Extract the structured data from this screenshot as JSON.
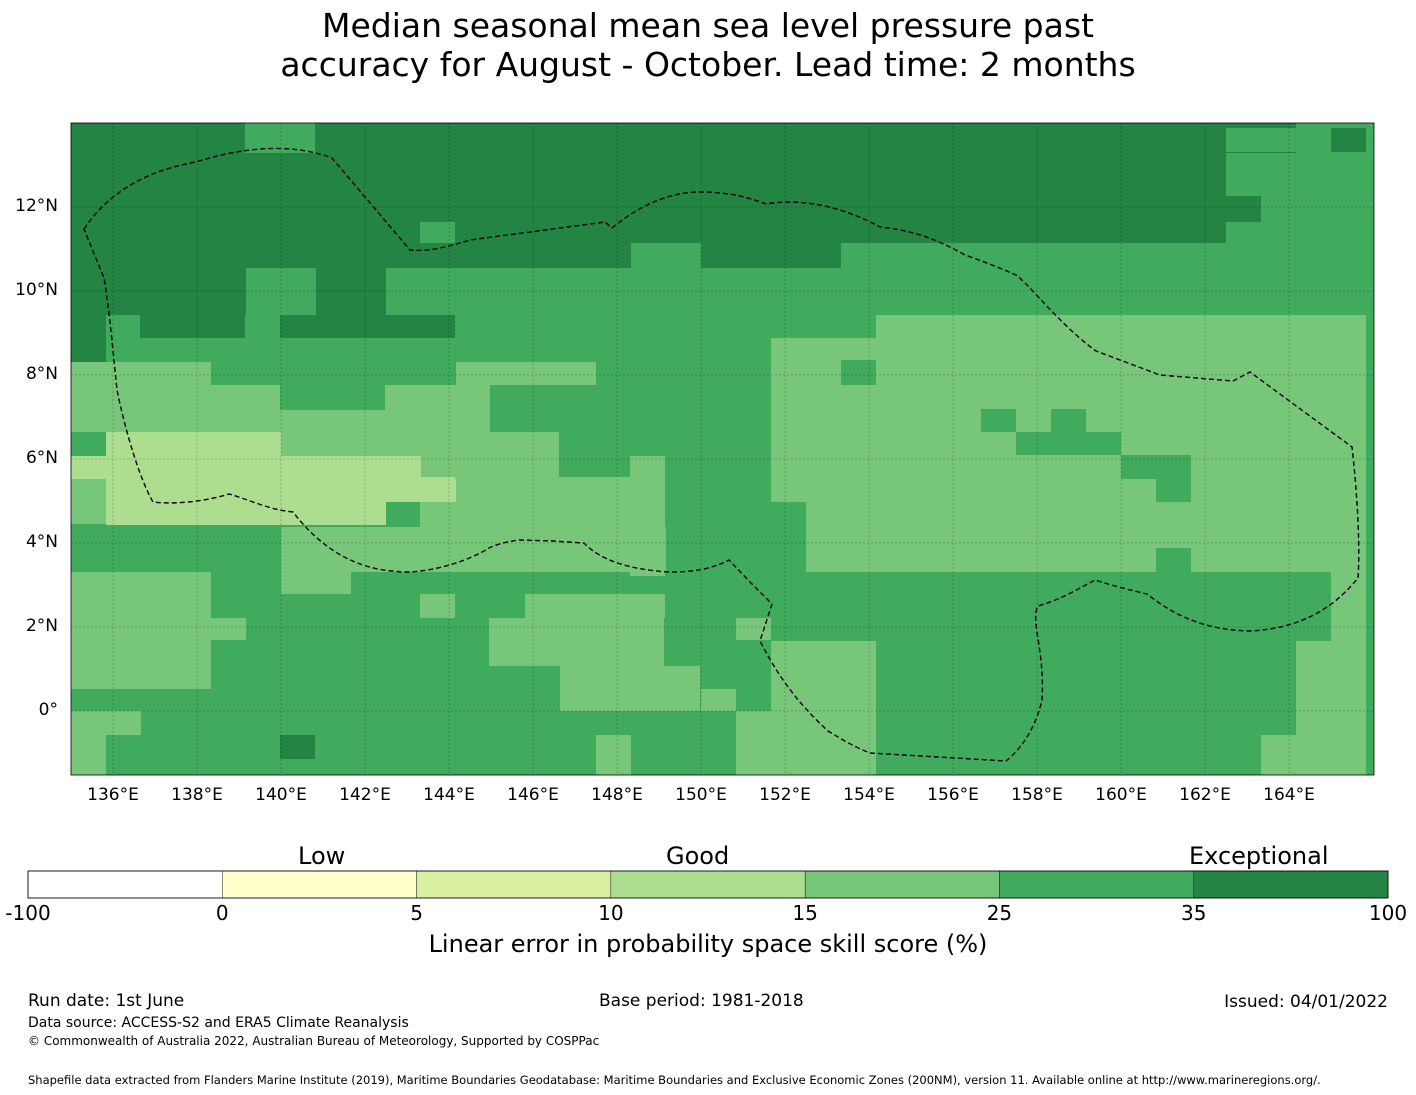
{
  "title": {
    "line1": "Median seasonal mean sea level pressure past",
    "line2": "accuracy for August - October. Lead time: 2 months"
  },
  "map": {
    "lon_ticks": [
      "136°E",
      "138°E",
      "140°E",
      "142°E",
      "144°E",
      "146°E",
      "148°E",
      "150°E",
      "152°E",
      "154°E",
      "156°E",
      "158°E",
      "160°E",
      "162°E",
      "164°E"
    ],
    "lat_ticks": [
      "12°N",
      "10°N",
      "8°N",
      "6°N",
      "4°N",
      "2°N",
      "0°"
    ],
    "colors": {
      "c25_35": "#41ab5d",
      "c35_100": "#238443",
      "c15_25": "#78c679",
      "c10_15": "#addd8e",
      "c5_10": "#d9f0a3",
      "c0_5": "#ffffcc",
      "neg": "#ffffff"
    }
  },
  "legend": {
    "categories": {
      "low": "Low",
      "good": "Good",
      "exceptional": "Exceptional"
    },
    "ticks": [
      "-100",
      "0",
      "5",
      "10",
      "15",
      "25",
      "35",
      "100"
    ],
    "colors": [
      "#ffffff",
      "#ffffcc",
      "#d9f0a3",
      "#addd8e",
      "#78c679",
      "#41ab5d",
      "#238443"
    ],
    "title": "Linear error in probability space skill score (%)"
  },
  "footer": {
    "run_date": "Run date: 1st June",
    "base_period": "Base period: 1981-2018",
    "issued": "Issued: 04/01/2022",
    "data_source": "Data source: ACCESS-S2 and ERA5 Climate Reanalysis",
    "copyright": "© Commonwealth of Australia 2022, Australian Bureau of Meteorology, Supported by COSPPac",
    "shapefile": "Shapefile data extracted from Flanders Marine Institute (2019), Maritime Boundaries Geodatabase: Maritime Boundaries and Exclusive Economic Zones (200NM), version 11. Available online at http://www.marineregions.org/."
  }
}
